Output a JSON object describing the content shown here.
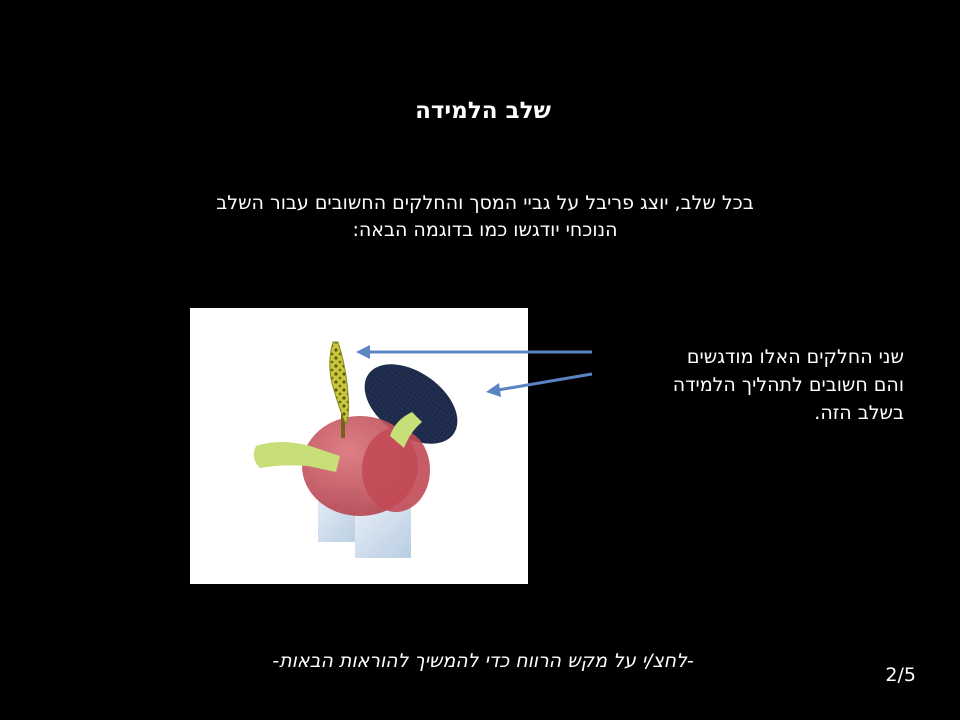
{
  "slide": {
    "title": "שלב הלמידה",
    "intro_line1": "בכל שלב, יוצג פריבל על גביי המסך והחלקים החשובים עבור השלב",
    "intro_line2": "הנוכחי יודגשו כמו בדוגמה הבאה:",
    "callout_line1": "שני החלקים האלו מודגשים",
    "callout_line2": "והם חשובים לתהליך הלמידה",
    "callout_line3": "בשלב הזה.",
    "instruction": "-לחצ/י על מקש הרווח כדי להמשיך להוראות הבאות-",
    "page_indicator": "2/5"
  },
  "colors": {
    "background": "#000000",
    "text": "#ffffff",
    "arrow": "#5b84c4",
    "figure_background": "#ffffff",
    "body_red": "#c9505a",
    "legs_blue": "#d4e4f2",
    "arm_green": "#c8de78",
    "highlight_yellow": "#c9c73a",
    "disk_navy": "#1e2a4a"
  },
  "icons": {
    "figure": "fribble-object-illustration",
    "arrows": "arrow-left-icon"
  }
}
